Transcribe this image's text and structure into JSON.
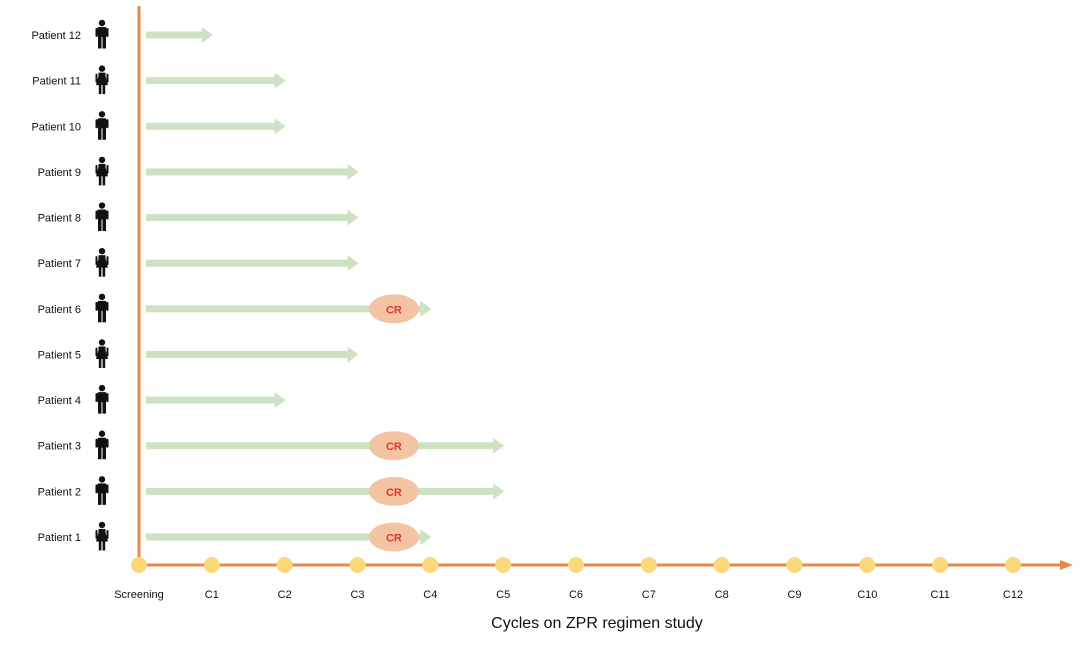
{
  "chart_data": {
    "type": "swimmer",
    "xlabel": "Cycles on ZPR regimen study",
    "x_ticks": [
      "Screening",
      "C1",
      "C2",
      "C3",
      "C4",
      "C5",
      "C6",
      "C7",
      "C8",
      "C9",
      "C10",
      "C11",
      "C12"
    ],
    "x_range": [
      0,
      12
    ],
    "response_label": "CR",
    "patients": [
      {
        "label": "Patient 12",
        "sex": "male",
        "duration_cycles": 1,
        "cr_at_cycle": null
      },
      {
        "label": "Patient 11",
        "sex": "female",
        "duration_cycles": 2,
        "cr_at_cycle": null
      },
      {
        "label": "Patient 10",
        "sex": "male",
        "duration_cycles": 2,
        "cr_at_cycle": null
      },
      {
        "label": "Patient 9",
        "sex": "female",
        "duration_cycles": 3,
        "cr_at_cycle": null
      },
      {
        "label": "Patient 8",
        "sex": "male",
        "duration_cycles": 3,
        "cr_at_cycle": null
      },
      {
        "label": "Patient 7",
        "sex": "female",
        "duration_cycles": 3,
        "cr_at_cycle": null
      },
      {
        "label": "Patient 6",
        "sex": "male",
        "duration_cycles": 4,
        "cr_at_cycle": 3.5
      },
      {
        "label": "Patient 5",
        "sex": "female",
        "duration_cycles": 3,
        "cr_at_cycle": null
      },
      {
        "label": "Patient 4",
        "sex": "male",
        "duration_cycles": 2,
        "cr_at_cycle": null
      },
      {
        "label": "Patient 3",
        "sex": "male",
        "duration_cycles": 5,
        "cr_at_cycle": 3.5
      },
      {
        "label": "Patient 2",
        "sex": "male",
        "duration_cycles": 5,
        "cr_at_cycle": 3.5
      },
      {
        "label": "Patient 1",
        "sex": "female",
        "duration_cycles": 4,
        "cr_at_cycle": 3.5
      }
    ],
    "colors": {
      "axis": "#e8894a",
      "bar": "#cde2c3",
      "tick_dot": "#fbd97a",
      "cr_fill": "#f2c4a4",
      "cr_text": "#e8322a",
      "label": "#111111"
    }
  }
}
